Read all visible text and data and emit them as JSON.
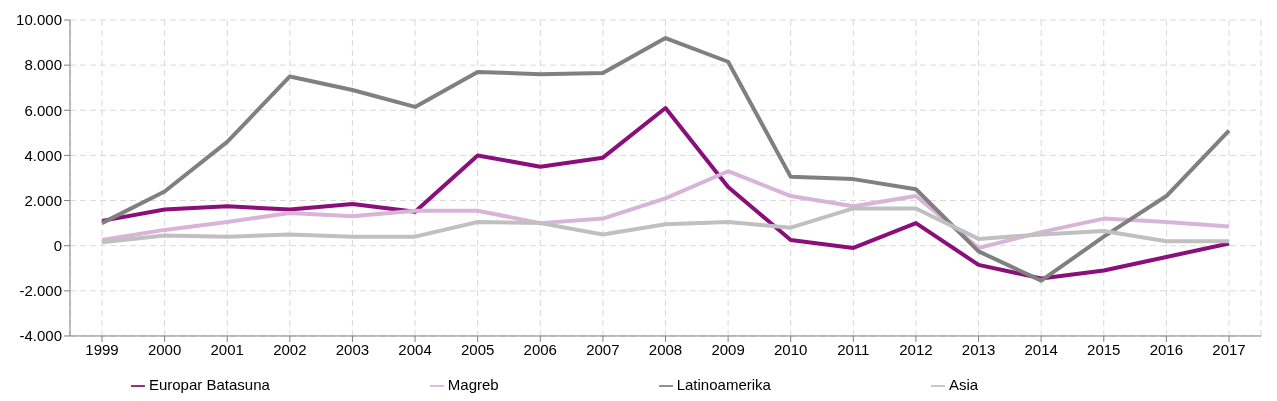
{
  "chart_data": {
    "type": "line",
    "categories": [
      "1999",
      "2000",
      "2001",
      "2002",
      "2003",
      "2004",
      "2005",
      "2006",
      "2007",
      "2008",
      "2009",
      "2010",
      "2011",
      "2012",
      "2013",
      "2014",
      "2015",
      "2016",
      "2017"
    ],
    "series": [
      {
        "name": "Europar Batasuna",
        "color": "#8b0f7a",
        "values": [
          1100,
          1600,
          1750,
          1600,
          1850,
          1500,
          4000,
          3500,
          3900,
          6100,
          2600,
          250,
          -100,
          1000,
          -850,
          -1450,
          -1100,
          -500,
          100
        ]
      },
      {
        "name": "Magreb",
        "color": "#d8b4d9",
        "values": [
          250,
          700,
          1050,
          1450,
          1300,
          1550,
          1550,
          1000,
          1200,
          2100,
          3300,
          2200,
          1750,
          2200,
          -100,
          600,
          1200,
          1050,
          850
        ]
      },
      {
        "name": "Latinoamerika",
        "color": "#808080",
        "values": [
          1000,
          2400,
          4600,
          7500,
          6900,
          6150,
          7700,
          7600,
          7650,
          9200,
          8150,
          3050,
          2950,
          2500,
          -250,
          -1550,
          400,
          2200,
          5100
        ]
      },
      {
        "name": "Asia",
        "color": "#c0c0c0",
        "values": [
          150,
          450,
          400,
          500,
          400,
          400,
          1050,
          1000,
          500,
          950,
          1050,
          800,
          1650,
          1650,
          300,
          500,
          650,
          200,
          200
        ]
      }
    ],
    "ylim": [
      -4000,
      10000
    ],
    "yticks": [
      {
        "value": -4000,
        "label": "-4.000"
      },
      {
        "value": -2000,
        "label": "-2.000"
      },
      0,
      {
        "value": 2000,
        "label": "2.000"
      },
      {
        "value": 4000,
        "label": "4.000"
      },
      {
        "value": 6000,
        "label": "6.000"
      },
      {
        "value": 8000,
        "label": "8.000"
      },
      {
        "value": 10000,
        "label": "10.000"
      }
    ],
    "grid": true,
    "legend": "bottom",
    "marker": "none",
    "line_style": "solid"
  }
}
